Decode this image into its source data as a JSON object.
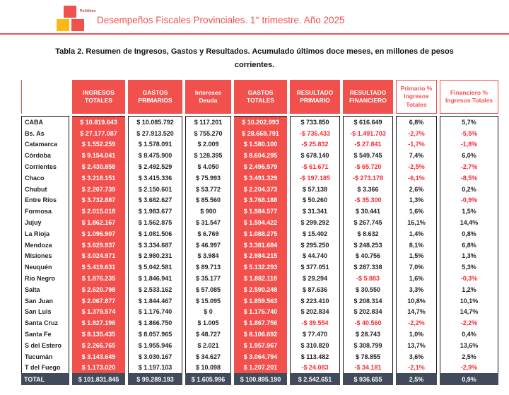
{
  "header": {
    "brand": "Politiken",
    "title": "Desempeños Fiscales Provinciales. 1° trimestre. Año 2025"
  },
  "caption": "Tabla 2. Resumen de Ingresos, Gastos y Resultados. Acumulado últimos doce meses, en millones de pesos corrientes.",
  "colors": {
    "accent_red": "#F2504D",
    "negative_text_red": "#FA2B33",
    "total_row_bg": "#414B5C",
    "logo_yellow": "#FDB913",
    "text_dark": "#231F20"
  },
  "table": {
    "columns": [
      "",
      "INGRESOS TOTALES",
      "GASTOS PRIMARIOS",
      "Intereses Deuda",
      "GASTOS TOTALES",
      "RESULTADO PRIMARIO",
      "RESULTADO FINANCIERO",
      "Primario % Ingresos Totales",
      "Financiero % Ingresos Totales"
    ],
    "rows": [
      [
        "CABA",
        "$ 10.819.643",
        "$ 10.085.792",
        "$ 117.201",
        "$ 10.202.993",
        "$ 733.850",
        "$ 616.649",
        "6,8%",
        "5,7%"
      ],
      [
        "Bs. As",
        "$ 27.177.087",
        "$ 27.913.520",
        "$ 755.270",
        "$ 28.668.791",
        "-$ 736.433",
        "-$ 1.491.703",
        "-2,7%",
        "-5,5%"
      ],
      [
        "Catamarca",
        "$ 1.552.259",
        "$ 1.578.091",
        "$ 2.009",
        "$ 1.580.100",
        "-$ 25.832",
        "-$ 27.841",
        "-1,7%",
        "-1,8%"
      ],
      [
        "Córdoba",
        "$ 9.154.041",
        "$ 8.475.900",
        "$ 128.395",
        "$ 8.604.295",
        "$ 678.140",
        "$ 549.745",
        "7,4%",
        "6,0%"
      ],
      [
        "Corrientes",
        "$ 2.430.858",
        "$ 2.492.529",
        "$ 4.050",
        "$ 2.496.579",
        "-$ 61.671",
        "-$ 65.720",
        "-2,5%",
        "-2,7%"
      ],
      [
        "Chaco",
        "$ 3.218.151",
        "$ 3.415.336",
        "$ 75.993",
        "$ 3.491.329",
        "-$ 197.185",
        "-$ 273.178",
        "-6,1%",
        "-8,5%"
      ],
      [
        "Chubut",
        "$ 2.207.739",
        "$ 2.150.601",
        "$ 53.772",
        "$ 2.204.373",
        "$ 57.138",
        "$ 3.366",
        "2,6%",
        "0,2%"
      ],
      [
        "Entre Ríos",
        "$ 3.732.887",
        "$ 3.682.627",
        "$ 85.560",
        "$ 3.768.188",
        "$ 50.260",
        "-$ 35.300",
        "1,3%",
        "-0,9%"
      ],
      [
        "Formosa",
        "$ 2.015.018",
        "$ 1.983.677",
        "$ 900",
        "$ 1.984.577",
        "$ 31.341",
        "$ 30.441",
        "1,6%",
        "1,5%"
      ],
      [
        "Jujuy",
        "$ 1.862.167",
        "$ 1.562.875",
        "$ 31.547",
        "$ 1.594.422",
        "$ 299.292",
        "$ 267.745",
        "16,1%",
        "14,4%"
      ],
      [
        "La Rioja",
        "$ 1.096.907",
        "$ 1.081.506",
        "$ 6.769",
        "$ 1.088.275",
        "$ 15.402",
        "$ 8.632",
        "1,4%",
        "0,8%"
      ],
      [
        "Mendoza",
        "$ 3.629.937",
        "$ 3.334.687",
        "$ 46.997",
        "$ 3.381.684",
        "$ 295.250",
        "$ 248.253",
        "8,1%",
        "6,8%"
      ],
      [
        "Misiones",
        "$ 3.024.971",
        "$ 2.980.231",
        "$ 3.984",
        "$ 2.984.215",
        "$ 44.740",
        "$ 40.756",
        "1,5%",
        "1,3%"
      ],
      [
        "Neuquén",
        "$ 5.419.631",
        "$ 5.042.581",
        "$ 89.713",
        "$ 5.132.293",
        "$ 377.051",
        "$ 287.338",
        "7,0%",
        "5,3%"
      ],
      [
        "Río Negro",
        "$ 1.876.235",
        "$ 1.846.941",
        "$ 35.177",
        "$ 1.882.118",
        "$ 29.294",
        "-$ 5.883",
        "1,6%",
        "-0,3%"
      ],
      [
        "Salta",
        "$ 2.620.798",
        "$ 2.533.162",
        "$ 57.085",
        "$ 2.590.248",
        "$ 87.636",
        "$ 30.550",
        "3,3%",
        "1,2%"
      ],
      [
        "San Juan",
        "$ 2.067.877",
        "$ 1.844.467",
        "$ 15.095",
        "$ 1.859.563",
        "$ 223.410",
        "$ 208.314",
        "10,8%",
        "10,1%"
      ],
      [
        "San Luis",
        "$ 1.379.574",
        "$ 1.176.740",
        "$ 0",
        "$ 1.176.740",
        "$ 202.834",
        "$ 202.834",
        "14,7%",
        "14,7%"
      ],
      [
        "Santa Cruz",
        "$ 1.827.196",
        "$ 1.866.750",
        "$ 1.005",
        "$ 1.867.756",
        "-$ 39.554",
        "-$ 40.560",
        "-2,2%",
        "-2,2%"
      ],
      [
        "Santa Fe",
        "$ 8.135.435",
        "$ 8.057.965",
        "$ 48.727",
        "$ 8.106.692",
        "$ 77.470",
        "$ 28.743",
        "1,0%",
        "0,4%"
      ],
      [
        "S del Estero",
        "$ 2.266.765",
        "$ 1.955.946",
        "$ 2.021",
        "$ 1.957.967",
        "$ 310.820",
        "$ 308.799",
        "13,7%",
        "13,6%"
      ],
      [
        "Tucumán",
        "$ 3.143.649",
        "$ 3.030.167",
        "$ 34.627",
        "$ 3.064.794",
        "$ 113.482",
        "$ 78.855",
        "3,6%",
        "2,5%"
      ],
      [
        "T del Fuego",
        "$ 1.173.020",
        "$ 1.197.103",
        "$ 10.098",
        "$ 1.207.201",
        "-$ 24.083",
        "-$ 34.181",
        "-2,1%",
        "-2,9%"
      ]
    ],
    "total": [
      "TOTAL",
      "$ 101.831.845",
      "$ 99.289.193",
      "$ 1.605.996",
      "$ 100.895.190",
      "$ 2.542.651",
      "$ 936.655",
      "2,5%",
      "0,9%"
    ]
  }
}
